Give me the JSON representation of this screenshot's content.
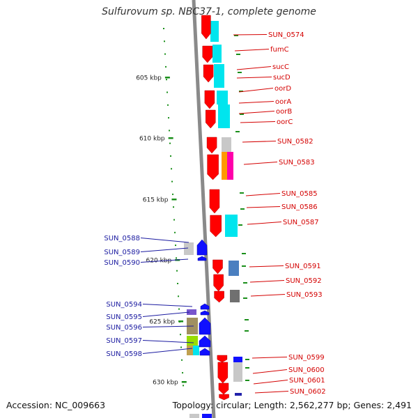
{
  "title": "Sulfurovum sp. NBC37-1, complete genome",
  "footer": {
    "accession": "Accession: NC_009663",
    "topology": "Topology: circular; Length: 2,562,277 bp; Genes: 2,491"
  },
  "colors": {
    "forward_gene": "#ff0000",
    "reverse_gene": "#1010ff",
    "forward_label": "#d40000",
    "reverse_label": "#1a1aa0",
    "backbone": "#8a8a8a",
    "scale_ticks": "#1a8f1a",
    "cog_cyan": "#00e5ee",
    "cog_grey": "#c8c8c8"
  },
  "scale": {
    "ticks": [
      {
        "label": "605 kbp"
      },
      {
        "label": "610 kbp"
      },
      {
        "label": "615 kbp"
      },
      {
        "label": "620 kbp"
      },
      {
        "label": "625 kbp"
      },
      {
        "label": "630 kbp"
      }
    ]
  },
  "genes_right": [
    {
      "label": "SUN_0574"
    },
    {
      "label": "fumC"
    },
    {
      "label": "sucC"
    },
    {
      "label": "sucD"
    },
    {
      "label": "oorD"
    },
    {
      "label": "oorA"
    },
    {
      "label": "oorB"
    },
    {
      "label": "oorC"
    },
    {
      "label": "SUN_0582"
    },
    {
      "label": "SUN_0583"
    },
    {
      "label": "SUN_0585"
    },
    {
      "label": "SUN_0586"
    },
    {
      "label": "SUN_0587"
    },
    {
      "label": "SUN_0591"
    },
    {
      "label": "SUN_0592"
    },
    {
      "label": "SUN_0593"
    },
    {
      "label": "SUN_0599"
    },
    {
      "label": "SUN_0600"
    },
    {
      "label": "SUN_0601"
    },
    {
      "label": "SUN_0602"
    }
  ],
  "genes_left": [
    {
      "label": "SUN_0588"
    },
    {
      "label": "SUN_0589"
    },
    {
      "label": "SUN_0590"
    },
    {
      "label": "SUN_0594"
    },
    {
      "label": "SUN_0595"
    },
    {
      "label": "SUN_0596"
    },
    {
      "label": "SUN_0597"
    },
    {
      "label": "SUN_0598"
    }
  ]
}
